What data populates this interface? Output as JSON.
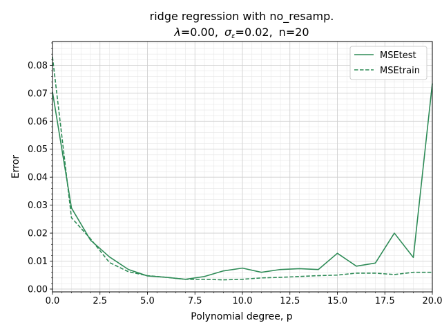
{
  "chart_data": {
    "type": "line",
    "title_line1": "ridge regression with no_resamp.",
    "title_line2": {
      "lambda_symbol": "λ",
      "lambda_text": "=0.00,",
      "sigma_symbol": "σ",
      "sigma_sub": "ε",
      "sigma_text": "=0.02,",
      "n_text": "n=20"
    },
    "xlabel": "Polynomial degree, p",
    "ylabel": "Error",
    "xlim": [
      0,
      20
    ],
    "ylim": [
      -0.001,
      0.0885
    ],
    "x_ticks": [
      0,
      2.5,
      5,
      7.5,
      10,
      12.5,
      15,
      17.5,
      20
    ],
    "x_tick_labels": [
      "0.0",
      "2.5",
      "5.0",
      "7.5",
      "10.0",
      "12.5",
      "15.0",
      "17.5",
      "20.0"
    ],
    "y_ticks": [
      0,
      0.01,
      0.02,
      0.03,
      0.04,
      0.05,
      0.06,
      0.07,
      0.08
    ],
    "y_tick_labels": [
      "0.00",
      "0.01",
      "0.02",
      "0.03",
      "0.04",
      "0.05",
      "0.06",
      "0.07",
      "0.08"
    ],
    "grid": true,
    "minor_grid": true,
    "legend_position": "top-right",
    "x": [
      0,
      1,
      2,
      3,
      4,
      5,
      6,
      7,
      8,
      9,
      10,
      11,
      12,
      13,
      14,
      15,
      16,
      17,
      18,
      19,
      20
    ],
    "series": [
      {
        "name": "MSEtest",
        "style": "solid",
        "color": "#2e8b57",
        "values": [
          0.0705,
          0.029,
          0.0175,
          0.0115,
          0.007,
          0.0047,
          0.0042,
          0.0035,
          0.0045,
          0.0065,
          0.0075,
          0.006,
          0.007,
          0.0073,
          0.007,
          0.0128,
          0.0082,
          0.0093,
          0.02,
          0.0113,
          0.0735
        ]
      },
      {
        "name": "MSEtrain",
        "style": "dashed",
        "color": "#2e8b57",
        "values": [
          0.083,
          0.0255,
          0.018,
          0.0095,
          0.0062,
          0.0048,
          0.0042,
          0.0035,
          0.0035,
          0.0033,
          0.0035,
          0.004,
          0.0042,
          0.0045,
          0.0048,
          0.005,
          0.0057,
          0.0057,
          0.0052,
          0.006,
          0.006
        ]
      }
    ]
  }
}
